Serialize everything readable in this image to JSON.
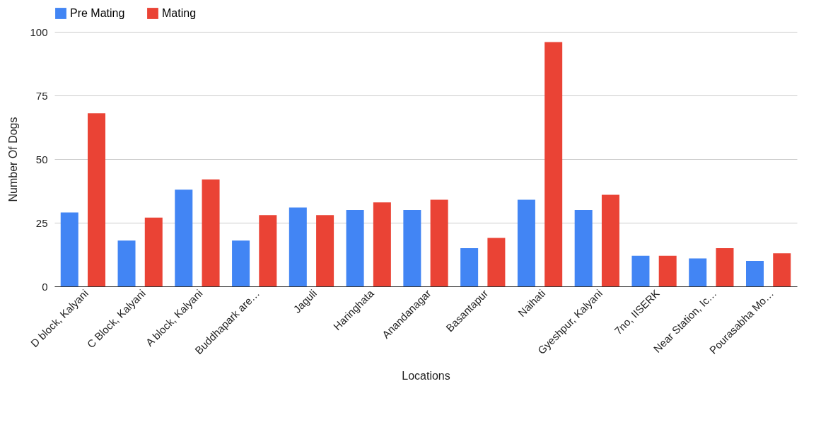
{
  "chart_data": {
    "type": "bar",
    "xlabel": "Locations",
    "ylabel": "Number Of Dogs",
    "categories": [
      "D block, Kalyani",
      "C Block, Kalyani",
      "A block, Kalyani",
      "Buddhapark are…",
      "Jaguli",
      "Haringhata",
      "Anandanagar",
      "Basantapur",
      "Naihati",
      "Gyeshpur, Kalyani",
      "7no, IISERK",
      "Near Station, Ic…",
      "Pourasabha Mo…"
    ],
    "series": [
      {
        "name": "Pre Mating",
        "color": "#4285f4",
        "values": [
          29,
          18,
          38,
          18,
          31,
          30,
          30,
          15,
          34,
          30,
          12,
          11,
          10
        ]
      },
      {
        "name": "Mating",
        "color": "#ea4335",
        "values": [
          68,
          27,
          42,
          28,
          28,
          33,
          34,
          19,
          96,
          36,
          12,
          15,
          13
        ]
      }
    ],
    "ylim": [
      0,
      100
    ],
    "yticks": [
      0,
      25,
      50,
      75,
      100
    ],
    "grid": "y",
    "legend": "top"
  }
}
